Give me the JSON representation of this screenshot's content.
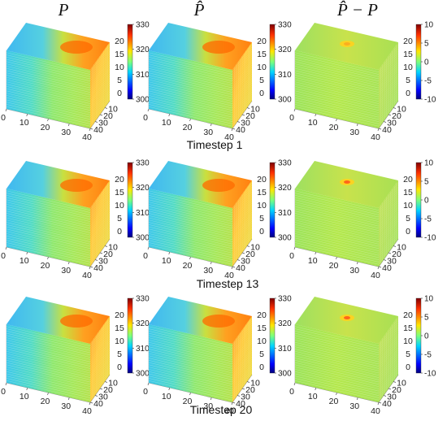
{
  "column_titles": [
    "P",
    "P̂",
    "P̂ − P"
  ],
  "row_labels": [
    "Timestep 1",
    "Timestep 13",
    "Timestep 20"
  ],
  "chart_data": [
    {
      "type": "heatmap",
      "panels": [
        "P",
        "P̂",
        "P̂ − P"
      ],
      "x_ticks": [
        "0",
        "10",
        "20",
        "30",
        "40"
      ],
      "y_ticks": [
        "40",
        "30",
        "20",
        "10"
      ],
      "z_ticks": [
        "0",
        "5",
        "10",
        "15",
        "20"
      ],
      "colorbars": [
        {
          "range": [
            300,
            330
          ],
          "ticks": [
            "330",
            "320",
            "310",
            "300"
          ]
        },
        {
          "range": [
            300,
            330
          ],
          "ticks": [
            "330",
            "320",
            "310",
            "300"
          ]
        },
        {
          "range": [
            -10,
            10
          ],
          "ticks": [
            "10",
            "5",
            "0",
            "-5",
            "-10"
          ]
        }
      ]
    }
  ],
  "colors": {
    "jet_low": "#00007f",
    "jet_cyan": "#00d4ff",
    "jet_green": "#7dff7a",
    "jet_yellow": "#ffe600",
    "jet_orange": "#ff7f00",
    "jet_high": "#7f0000"
  }
}
